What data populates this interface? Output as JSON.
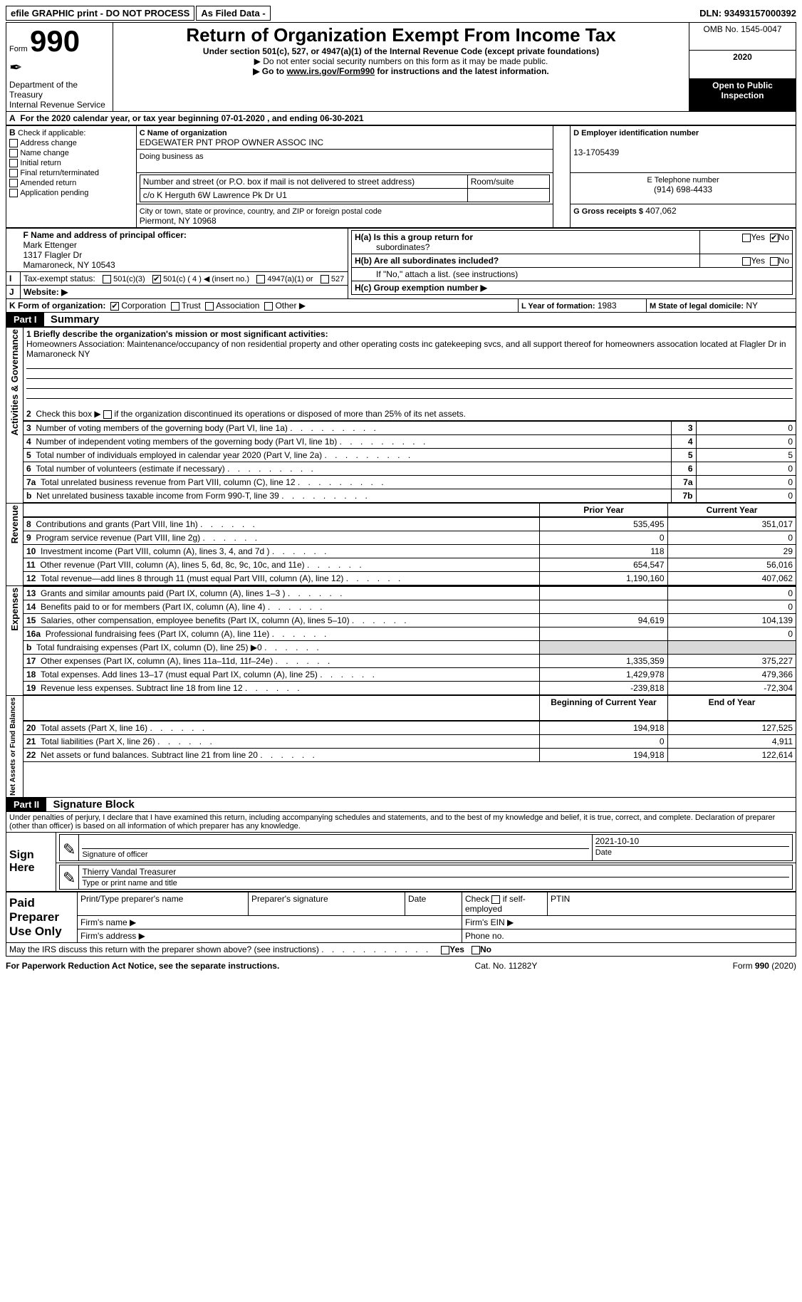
{
  "topbar": {
    "b1": "efile GRAPHIC print - DO NOT PROCESS",
    "b2": "As Filed Data -",
    "dln_label": "DLN:",
    "dln": "93493157000392"
  },
  "header": {
    "form_prefix": "Form",
    "form_number": "990",
    "dept": "Department of the Treasury",
    "irs": "Internal Revenue Service",
    "title": "Return of Organization Exempt From Income Tax",
    "sub1": "Under section 501(c), 527, or 4947(a)(1) of the Internal Revenue Code (except private foundations)",
    "sub2": "▶ Do not enter social security numbers on this form as it may be made public.",
    "sub3_prefix": "▶ Go to ",
    "sub3_link": "www.irs.gov/Form990",
    "sub3_suffix": " for instructions and the latest information.",
    "omb": "OMB No. 1545-0047",
    "year": "2020",
    "open_pub": "Open to Public Inspection"
  },
  "A": {
    "text": "For the 2020 calendar year, or tax year beginning 07-01-2020   , and ending 06-30-2021"
  },
  "B": {
    "label": "Check if applicable:",
    "opts": [
      "Address change",
      "Name change",
      "Initial return",
      "Final return/terminated",
      "Amended return",
      "Application pending"
    ]
  },
  "C": {
    "name_lbl": "C Name of organization",
    "name": "EDGEWATER PNT PROP OWNER ASSOC INC",
    "dba_lbl": "Doing business as",
    "addr_lbl": "Number and street (or P.O. box if mail is not delivered to street address)",
    "room_lbl": "Room/suite",
    "addr": "c/o K Herguth 6W Lawrence Pk Dr U1",
    "city_lbl": "City or town, state or province, country, and ZIP or foreign postal code",
    "city": "Piermont, NY  10968"
  },
  "D": {
    "lbl": "D Employer identification number",
    "val": "13-1705439"
  },
  "E": {
    "lbl": "E Telephone number",
    "val": "(914) 698-4433"
  },
  "G": {
    "lbl": "G Gross receipts $",
    "val": "407,062"
  },
  "F": {
    "lbl": "F  Name and address of principal officer:",
    "name": "Mark Ettenger",
    "addr1": "1317 Flagler Dr",
    "addr2": "Mamaroneck, NY  10543"
  },
  "H": {
    "a1": "H(a)  Is this a group return for",
    "a2": "subordinates?",
    "b1": "H(b)  Are all subordinates included?",
    "b2": "If \"No,\" attach a list. (see instructions)",
    "c": "H(c)  Group exemption number ▶",
    "yes": "Yes",
    "no": "No"
  },
  "I": {
    "lbl": "Tax-exempt status:",
    "o1": "501(c)(3)",
    "o2a": "501(c) ( 4 ) ◀ (insert no.)",
    "o3": "4947(a)(1) or",
    "o4": "527"
  },
  "J": {
    "lbl": "Website: ▶"
  },
  "K": {
    "lbl": "K Form of organization:",
    "o1": "Corporation",
    "o2": "Trust",
    "o3": "Association",
    "o4": "Other ▶"
  },
  "L": {
    "lbl": "L Year of formation:",
    "val": "1983"
  },
  "M": {
    "lbl": "M State of legal domicile:",
    "val": "NY"
  },
  "partI": {
    "part": "Part I",
    "title": "Summary",
    "q1": "1 Briefly describe the organization's mission or most significant activities:",
    "mission": "Homeowners Association: Maintenance/occupancy of non residential property and other operating costs inc gatekeeping svcs, and all support thereof for homeowners assocation located at Flagler Dr in Mamaroneck NY",
    "q2": "Check this box ▶",
    "q2b": "if the organization discontinued its operations or disposed of more than 25% of its net assets."
  },
  "sections": {
    "activities_gov": "Activities & Governance",
    "revenue": "Revenue",
    "expenses": "Expenses",
    "net": "Net Assets or Fund Balances"
  },
  "summary_rows": [
    {
      "n": "3",
      "txt": "Number of voting members of the governing body (Part VI, line 1a)",
      "box": "3",
      "py": "",
      "cy": "0"
    },
    {
      "n": "4",
      "txt": "Number of independent voting members of the governing body (Part VI, line 1b)",
      "box": "4",
      "py": "",
      "cy": "0"
    },
    {
      "n": "5",
      "txt": "Total number of individuals employed in calendar year 2020 (Part V, line 2a)",
      "box": "5",
      "py": "",
      "cy": "5"
    },
    {
      "n": "6",
      "txt": "Total number of volunteers (estimate if necessary)",
      "box": "6",
      "py": "",
      "cy": "0"
    },
    {
      "n": "7a",
      "txt": "Total unrelated business revenue from Part VIII, column (C), line 12",
      "box": "7a",
      "py": "",
      "cy": "0"
    },
    {
      "n": "b",
      "txt": "Net unrelated business taxable income from Form 990-T, line 39",
      "box": "7b",
      "py": "",
      "cy": "0"
    }
  ],
  "pycy_header": {
    "py": "Prior Year",
    "cy": "Current Year"
  },
  "revenue_rows": [
    {
      "n": "8",
      "txt": "Contributions and grants (Part VIII, line 1h)",
      "py": "535,495",
      "cy": "351,017"
    },
    {
      "n": "9",
      "txt": "Program service revenue (Part VIII, line 2g)",
      "py": "0",
      "cy": "0"
    },
    {
      "n": "10",
      "txt": "Investment income (Part VIII, column (A), lines 3, 4, and 7d )",
      "py": "118",
      "cy": "29"
    },
    {
      "n": "11",
      "txt": "Other revenue (Part VIII, column (A), lines 5, 6d, 8c, 9c, 10c, and 11e)",
      "py": "654,547",
      "cy": "56,016"
    },
    {
      "n": "12",
      "txt": "Total revenue—add lines 8 through 11 (must equal Part VIII, column (A), line 12)",
      "py": "1,190,160",
      "cy": "407,062"
    }
  ],
  "expense_rows": [
    {
      "n": "13",
      "txt": "Grants and similar amounts paid (Part IX, column (A), lines 1–3 )",
      "py": "",
      "cy": "0"
    },
    {
      "n": "14",
      "txt": "Benefits paid to or for members (Part IX, column (A), line 4)",
      "py": "",
      "cy": "0"
    },
    {
      "n": "15",
      "txt": "Salaries, other compensation, employee benefits (Part IX, column (A), lines 5–10)",
      "py": "94,619",
      "cy": "104,139"
    },
    {
      "n": "16a",
      "txt": "Professional fundraising fees (Part IX, column (A), line 11e)",
      "py": "",
      "cy": "0"
    },
    {
      "n": "b",
      "txt": "Total fundraising expenses (Part IX, column (D), line 25) ▶0",
      "py": "GREY",
      "cy": "GREY"
    },
    {
      "n": "17",
      "txt": "Other expenses (Part IX, column (A), lines 11a–11d, 11f–24e)",
      "py": "1,335,359",
      "cy": "375,227"
    },
    {
      "n": "18",
      "txt": "Total expenses. Add lines 13–17 (must equal Part IX, column (A), line 25)",
      "py": "1,429,978",
      "cy": "479,366"
    },
    {
      "n": "19",
      "txt": "Revenue less expenses. Subtract line 18 from line 12",
      "py": "-239,818",
      "cy": "-72,304"
    }
  ],
  "boy_eoy_header": {
    "boy": "Beginning of Current Year",
    "eoy": "End of Year"
  },
  "net_rows": [
    {
      "n": "20",
      "txt": "Total assets (Part X, line 16)",
      "py": "194,918",
      "cy": "127,525"
    },
    {
      "n": "21",
      "txt": "Total liabilities (Part X, line 26)",
      "py": "0",
      "cy": "4,911"
    },
    {
      "n": "22",
      "txt": "Net assets or fund balances. Subtract line 21 from line 20",
      "py": "194,918",
      "cy": "122,614"
    }
  ],
  "partII": {
    "part": "Part II",
    "title": "Signature Block",
    "decl": "Under penalties of perjury, I declare that I have examined this return, including accompanying schedules and statements, and to the best of my knowledge and belief, it is true, correct, and complete. Declaration of preparer (other than officer) is based on all information of which preparer has any knowledge."
  },
  "sign": {
    "here": "Sign Here",
    "sig_lbl": "Signature of officer",
    "date_lbl": "Date",
    "date_val": "2021-10-10",
    "name": "Thierry Vandal Treasurer",
    "name_lbl": "Type or print name and title"
  },
  "paid": {
    "label": "Paid Preparer Use Only",
    "c1": "Print/Type preparer's name",
    "c2": "Preparer's signature",
    "c3": "Date",
    "c4a": "Check",
    "c4b": "if self-employed",
    "c5": "PTIN",
    "firm_name": "Firm's name   ▶",
    "firm_ein": "Firm's EIN ▶",
    "firm_addr": "Firm's address ▶",
    "phone": "Phone no."
  },
  "discuss": {
    "txt": "May the IRS discuss this return with the preparer shown above? (see instructions)",
    "yes": "Yes",
    "no": "No"
  },
  "footer": {
    "left": "For Paperwork Reduction Act Notice, see the separate instructions.",
    "mid": "Cat. No. 11282Y",
    "right_a": "Form ",
    "right_b": "990",
    "right_c": " (2020)"
  }
}
